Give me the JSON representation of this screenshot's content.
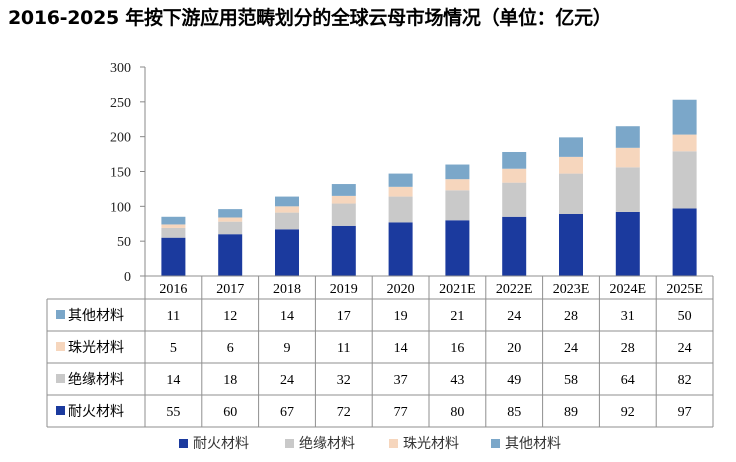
{
  "chart_data": {
    "type": "bar",
    "stacked": true,
    "title": "2016-2025 年按下游应用范畴划分的全球云母市场情况（单位：亿元）",
    "categories": [
      "2016",
      "2017",
      "2018",
      "2019",
      "2020",
      "2021E",
      "2022E",
      "2023E",
      "2024E",
      "2025E"
    ],
    "ylim": [
      0,
      300
    ],
    "yticks": [
      0,
      50,
      100,
      150,
      200,
      250,
      300
    ],
    "grid": false,
    "legend_position": "bottom",
    "series": [
      {
        "name": "耐火材料",
        "color": "#1b3a9e",
        "values": [
          55,
          60,
          67,
          72,
          77,
          80,
          85,
          89,
          92,
          97
        ]
      },
      {
        "name": "绝缘材料",
        "color": "#c9c9c9",
        "values": [
          14,
          18,
          24,
          32,
          37,
          43,
          49,
          58,
          64,
          82
        ]
      },
      {
        "name": "珠光材料",
        "color": "#f6d6bd",
        "values": [
          5,
          6,
          9,
          11,
          14,
          16,
          20,
          24,
          28,
          24
        ]
      },
      {
        "name": "其他材料",
        "color": "#7ba7c9",
        "values": [
          11,
          12,
          14,
          17,
          19,
          21,
          24,
          28,
          31,
          50
        ]
      }
    ],
    "table_row_order": [
      "其他材料",
      "珠光材料",
      "绝缘材料",
      "耐火材料"
    ]
  }
}
